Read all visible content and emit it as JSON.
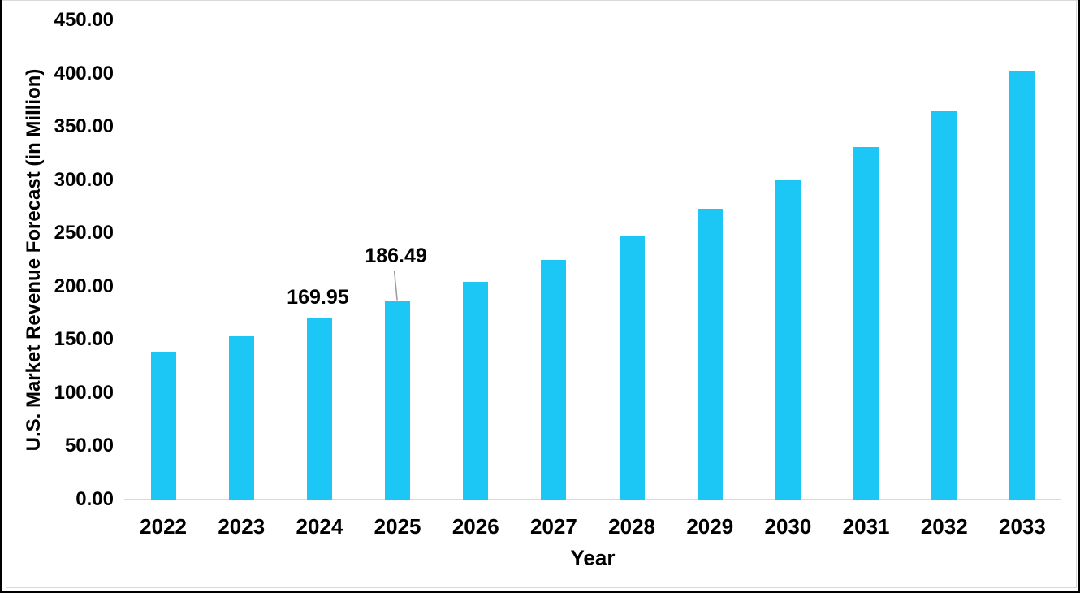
{
  "chart_data": {
    "type": "bar",
    "title": "",
    "xlabel": "Year",
    "ylabel": "U.S. Market Revenue Forecast (in Million)",
    "categories": [
      "2022",
      "2023",
      "2024",
      "2025",
      "2026",
      "2027",
      "2028",
      "2029",
      "2030",
      "2031",
      "2032",
      "2033"
    ],
    "values": [
      139.0,
      153.2,
      169.95,
      186.49,
      204.4,
      225.3,
      247.6,
      272.9,
      300.5,
      330.9,
      364.9,
      403.0
    ],
    "ylim": [
      0,
      450
    ],
    "ytick_step": 50,
    "yticks": [
      {
        "value": 0,
        "label": "0.00"
      },
      {
        "value": 50,
        "label": "50.00"
      },
      {
        "value": 100,
        "label": "100.00"
      },
      {
        "value": 150,
        "label": "150.00"
      },
      {
        "value": 200,
        "label": "200.00"
      },
      {
        "value": 250,
        "label": "250.00"
      },
      {
        "value": 300,
        "label": "300.00"
      },
      {
        "value": 350,
        "label": "350.00"
      },
      {
        "value": 400,
        "label": "400.00"
      },
      {
        "value": 450,
        "label": "450.00"
      }
    ],
    "data_labels": [
      {
        "category": "2024",
        "text": "169.95",
        "leader": false
      },
      {
        "category": "2025",
        "text": "186.49",
        "leader": true
      }
    ],
    "bar_color": "#1CC7F6",
    "axis_line_color": "#D9D9D9",
    "leader_line_color": "#999999",
    "text_color": "#000000",
    "grid": false,
    "legend": "none"
  }
}
